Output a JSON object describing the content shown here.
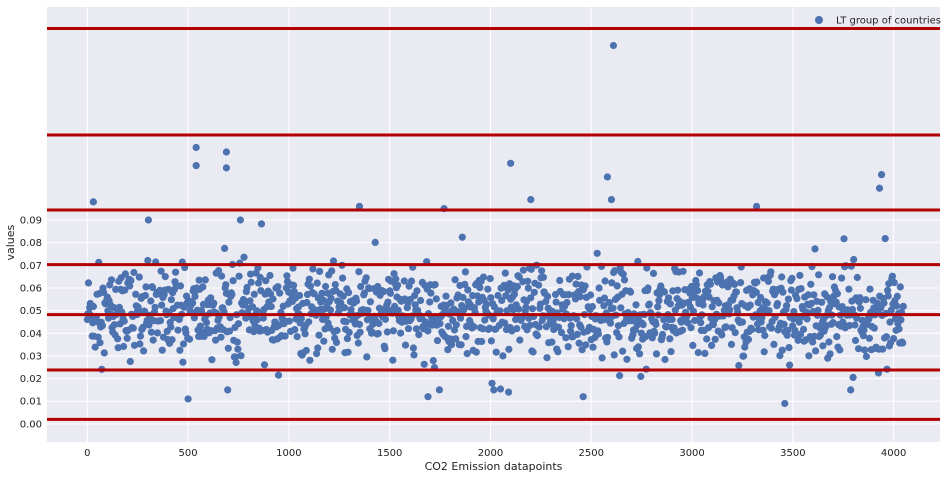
{
  "chart_data": {
    "type": "scatter",
    "title": "",
    "xlabel": "CO2 Emission datapoints",
    "ylabel": "values",
    "xlim": [
      -200,
      4230
    ],
    "ylim": [
      -0.008,
      0.184
    ],
    "x_ticks": [
      0,
      500,
      1000,
      1500,
      2000,
      2500,
      3000,
      3500,
      4000
    ],
    "y_ticks": [
      0.0,
      0.01,
      0.02,
      0.03,
      0.04,
      0.05,
      0.06,
      0.07,
      0.08,
      0.09
    ],
    "x_tick_labels": [
      "0",
      "500",
      "1000",
      "1500",
      "2000",
      "2500",
      "3000",
      "3500",
      "4000"
    ],
    "y_tick_labels": [
      "0.00",
      "0.01",
      "0.02",
      "0.03",
      "0.04",
      "0.05",
      "0.06",
      "0.07",
      "0.08",
      "0.09"
    ],
    "grid": true,
    "legend_position": "top-right",
    "series": [
      {
        "name": "LT group of countries",
        "color": "#4c72b0",
        "n_points": 4050,
        "x_range": [
          0,
          4050
        ],
        "typical_range": [
          0.03,
          0.07
        ],
        "center": 0.049,
        "outliers": [
          {
            "x": 2610,
            "y": 0.167
          },
          {
            "x": 540,
            "y": 0.122
          },
          {
            "x": 540,
            "y": 0.114
          },
          {
            "x": 690,
            "y": 0.12
          },
          {
            "x": 690,
            "y": 0.113
          },
          {
            "x": 2100,
            "y": 0.115
          },
          {
            "x": 2580,
            "y": 0.109
          },
          {
            "x": 3940,
            "y": 0.11
          },
          {
            "x": 3930,
            "y": 0.104
          },
          {
            "x": 2600,
            "y": 0.099
          },
          {
            "x": 2200,
            "y": 0.099
          },
          {
            "x": 1350,
            "y": 0.096
          },
          {
            "x": 1770,
            "y": 0.095
          },
          {
            "x": 3320,
            "y": 0.096
          },
          {
            "x": 30,
            "y": 0.098
          },
          {
            "x": 2090,
            "y": 0.014
          },
          {
            "x": 2460,
            "y": 0.012
          },
          {
            "x": 500,
            "y": 0.011
          },
          {
            "x": 1690,
            "y": 0.012
          },
          {
            "x": 3460,
            "y": 0.009
          }
        ]
      }
    ],
    "hlines": [
      {
        "y": 0.002,
        "color": "#b30000"
      },
      {
        "y": 0.0238,
        "color": "#b30000"
      },
      {
        "y": 0.0482,
        "color": "#b30000"
      },
      {
        "y": 0.0703,
        "color": "#b30000"
      },
      {
        "y": 0.0944,
        "color": "#b30000"
      },
      {
        "y": 0.1275,
        "color": "#b30000"
      },
      {
        "y": 0.1745,
        "color": "#b30000"
      }
    ],
    "colors": {
      "plot_background": "#eaeaf2",
      "grid": "#ffffff"
    }
  }
}
